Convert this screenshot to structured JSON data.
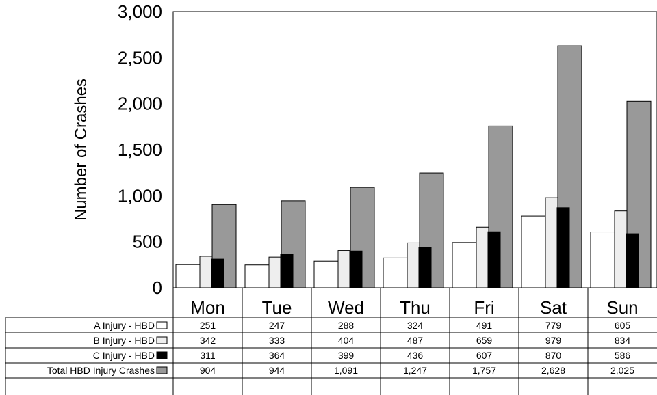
{
  "chart_data": {
    "type": "bar",
    "title": "",
    "xlabel": "",
    "ylabel": "Number of Crashes",
    "ylim": [
      0,
      3000
    ],
    "yticks": [
      "0",
      "500",
      "1,000",
      "1,500",
      "2,000",
      "2,500",
      "3,000"
    ],
    "grid": false,
    "legend": "table-left",
    "categories": [
      "Mon",
      "Tue",
      "Wed",
      "Thu",
      "Fri",
      "Sat",
      "Sun"
    ],
    "series": [
      {
        "name": "A Injury - HBD",
        "color": "#ffffff",
        "values": [
          251,
          247,
          288,
          324,
          491,
          779,
          605
        ],
        "labels": [
          "251",
          "247",
          "288",
          "324",
          "491",
          "779",
          "605"
        ]
      },
      {
        "name": "B Injury - HBD",
        "color": "#eeeeee",
        "values": [
          342,
          333,
          404,
          487,
          659,
          979,
          834
        ],
        "labels": [
          "342",
          "333",
          "404",
          "487",
          "659",
          "979",
          "834"
        ]
      },
      {
        "name": "C Injury - HBD",
        "color": "#000000",
        "values": [
          311,
          364,
          399,
          436,
          607,
          870,
          586
        ],
        "labels": [
          "311",
          "364",
          "399",
          "436",
          "607",
          "870",
          "586"
        ]
      },
      {
        "name": "Total HBD Injury Crashes",
        "color": "#999999",
        "values": [
          904,
          944,
          1091,
          1247,
          1757,
          2628,
          2025
        ],
        "labels": [
          "904",
          "944",
          "1,091",
          "1,247",
          "1,757",
          "2,628",
          "2,025"
        ]
      }
    ]
  }
}
